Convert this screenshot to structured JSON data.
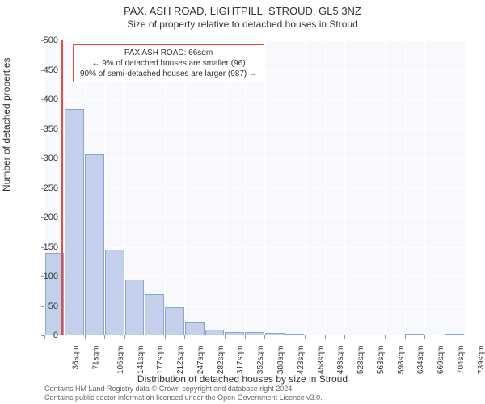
{
  "title": "PAX, ASH ROAD, LIGHTPILL, STROUD, GL5 3NZ",
  "subtitle": "Size of property relative to detached houses in Stroud",
  "chart": {
    "type": "histogram",
    "background_color": "#f8f9fc",
    "bar_color": "#c4d0eb",
    "bar_border_color": "#8ca3d4",
    "grid_color": "#ffffff",
    "ylim": [
      0,
      500
    ],
    "ytick_step": 50,
    "ylabel": "Number of detached properties",
    "xlabel": "Distribution of detached houses by size in Stroud",
    "label_fontsize": 12,
    "tick_fontsize": 11,
    "x_categories": [
      "36sqm",
      "71sqm",
      "106sqm",
      "141sqm",
      "177sqm",
      "212sqm",
      "247sqm",
      "282sqm",
      "317sqm",
      "352sqm",
      "388sqm",
      "423sqm",
      "458sqm",
      "493sqm",
      "528sqm",
      "563sqm",
      "598sqm",
      "634sqm",
      "669sqm",
      "704sqm",
      "739sqm"
    ],
    "values": [
      140,
      383,
      307,
      145,
      95,
      70,
      48,
      22,
      10,
      5,
      5,
      4,
      2,
      0,
      0,
      0,
      0,
      0,
      2,
      0,
      3
    ],
    "marker_line": {
      "position_index": 0.85,
      "color": "#e74c3c"
    },
    "annotation": {
      "line1": "PAX ASH ROAD: 66sqm",
      "line2": "← 9% of detached houses are smaller (96)",
      "line3": "90% of semi-detached houses are larger (987) →",
      "border_color": "#e74c3c",
      "background": "#ffffff"
    }
  },
  "footer": {
    "line1": "Contains HM Land Registry data © Crown copyright and database right 2024.",
    "line2": "Contains public sector information licensed under the Open Government Licence v3.0."
  }
}
